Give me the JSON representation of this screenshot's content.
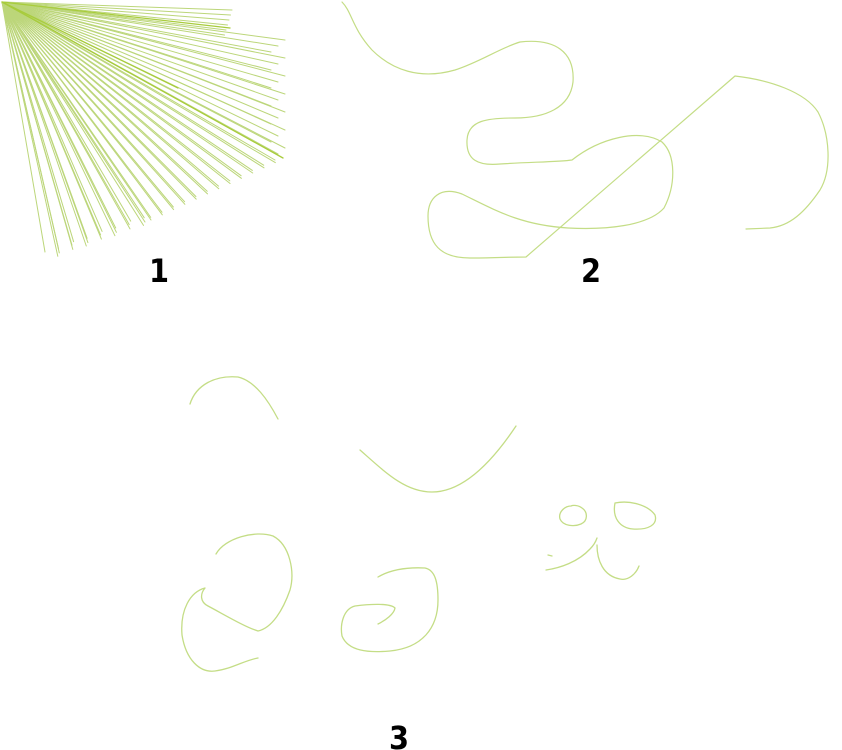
{
  "panels": [
    {
      "label": "1",
      "content": "fan-of-strokes"
    },
    {
      "label": "2",
      "content": "continuous-line-scribble"
    },
    {
      "label": "3",
      "content": "separate-curved-strokes"
    }
  ],
  "colors": {
    "stroke": "#c4dd86",
    "fan_stroke": "#bcd67a",
    "dense_stroke": "#a8cc3c",
    "label": "#000000",
    "background": "#ffffff"
  }
}
